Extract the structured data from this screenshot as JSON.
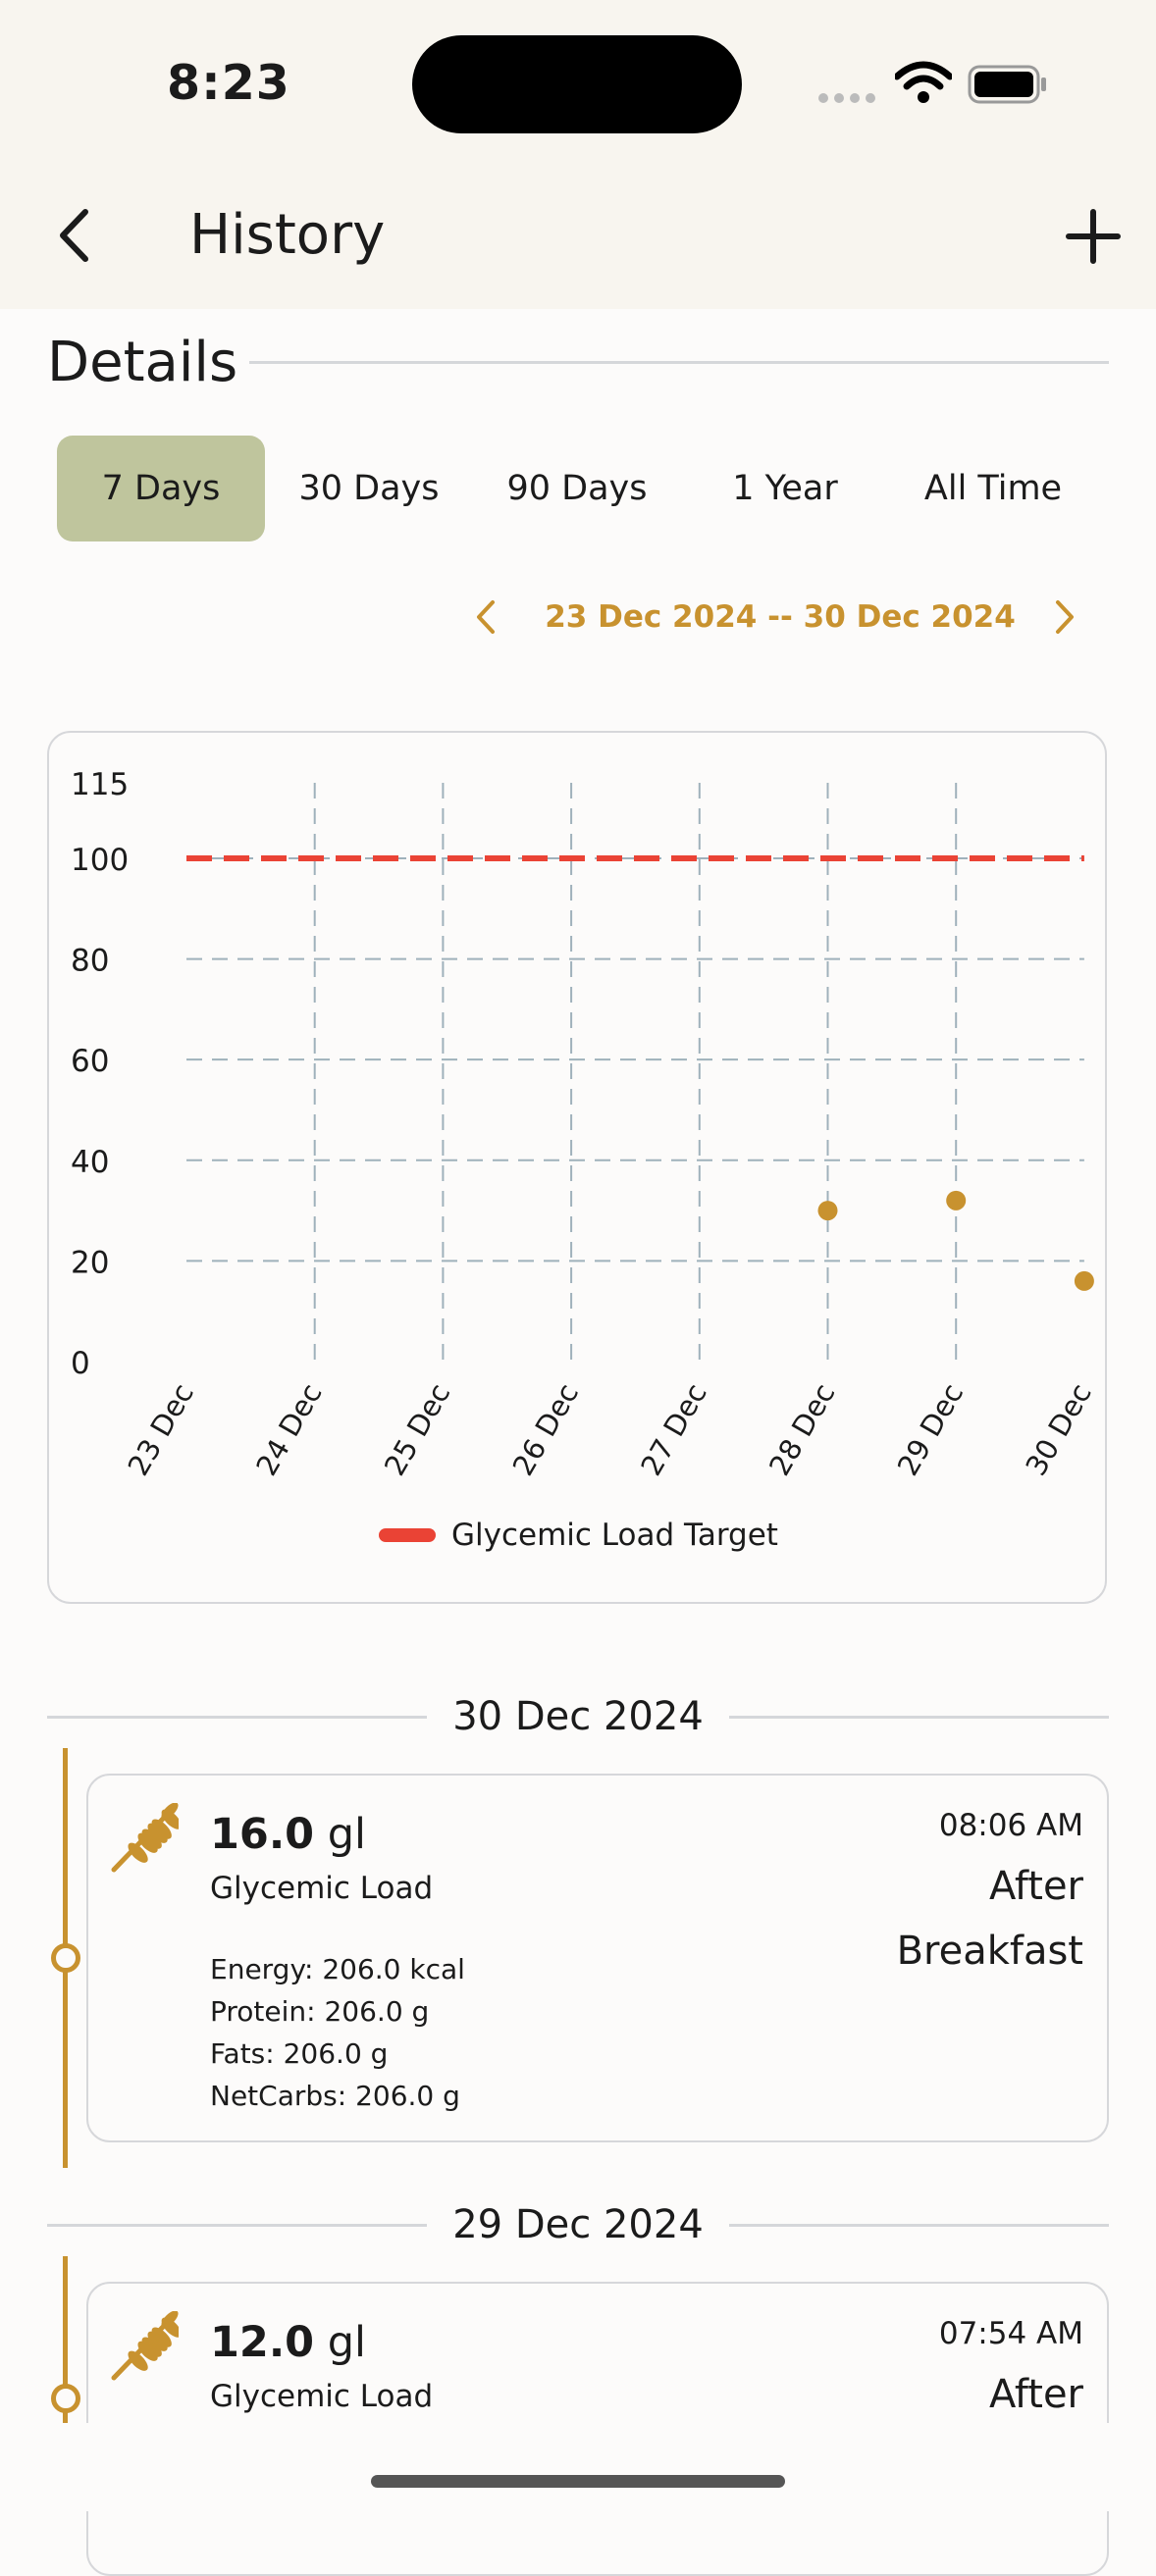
{
  "status_bar": {
    "time": "8:23"
  },
  "navbar": {
    "title": "History"
  },
  "section": {
    "title": "Details"
  },
  "range_tabs": [
    {
      "label": "7 Days",
      "active": true
    },
    {
      "label": "30 Days",
      "active": false
    },
    {
      "label": "90 Days",
      "active": false
    },
    {
      "label": "1 Year",
      "active": false
    },
    {
      "label": "All Time",
      "active": false
    }
  ],
  "date_range": {
    "label": "23 Dec 2024 -- 30 Dec 2024"
  },
  "colors": {
    "accent": "#c8922f",
    "target_line": "#ea4335",
    "active_tab": "#bfc59d",
    "grid": "#9fb1bb"
  },
  "chart_data": {
    "type": "scatter",
    "categories": [
      "23 Dec",
      "24 Dec",
      "25 Dec",
      "26 Dec",
      "27 Dec",
      "28 Dec",
      "29 Dec",
      "30 Dec"
    ],
    "y_ticks": [
      "0",
      "20",
      "40",
      "60",
      "80",
      "100",
      "115"
    ],
    "ylim": [
      0,
      115
    ],
    "series": [
      {
        "values": [
          null,
          null,
          null,
          null,
          null,
          30,
          32,
          16
        ]
      }
    ],
    "target": {
      "name": "Glycemic Load Target",
      "value": 100
    },
    "grid": true,
    "legend": "bottom"
  },
  "entries": [
    {
      "date": "30 Dec 2024",
      "gl_number": "16.0",
      "gl_unit": "gl",
      "gl_label": "Glycemic Load",
      "time": "08:06 AM",
      "meal": "After Breakfast",
      "energy": "Energy: 206.0 kcal",
      "protein": "Protein: 206.0 g",
      "fats": "Fats: 206.0 g",
      "netcarbs": "NetCarbs: 206.0 g",
      "icon": "wheat-icon"
    },
    {
      "date": "29 Dec 2024",
      "gl_number": "12.0",
      "gl_unit": "gl",
      "gl_label": "Glycemic Load",
      "time": "07:54 AM",
      "meal": "After",
      "icon": "wheat-icon"
    }
  ]
}
